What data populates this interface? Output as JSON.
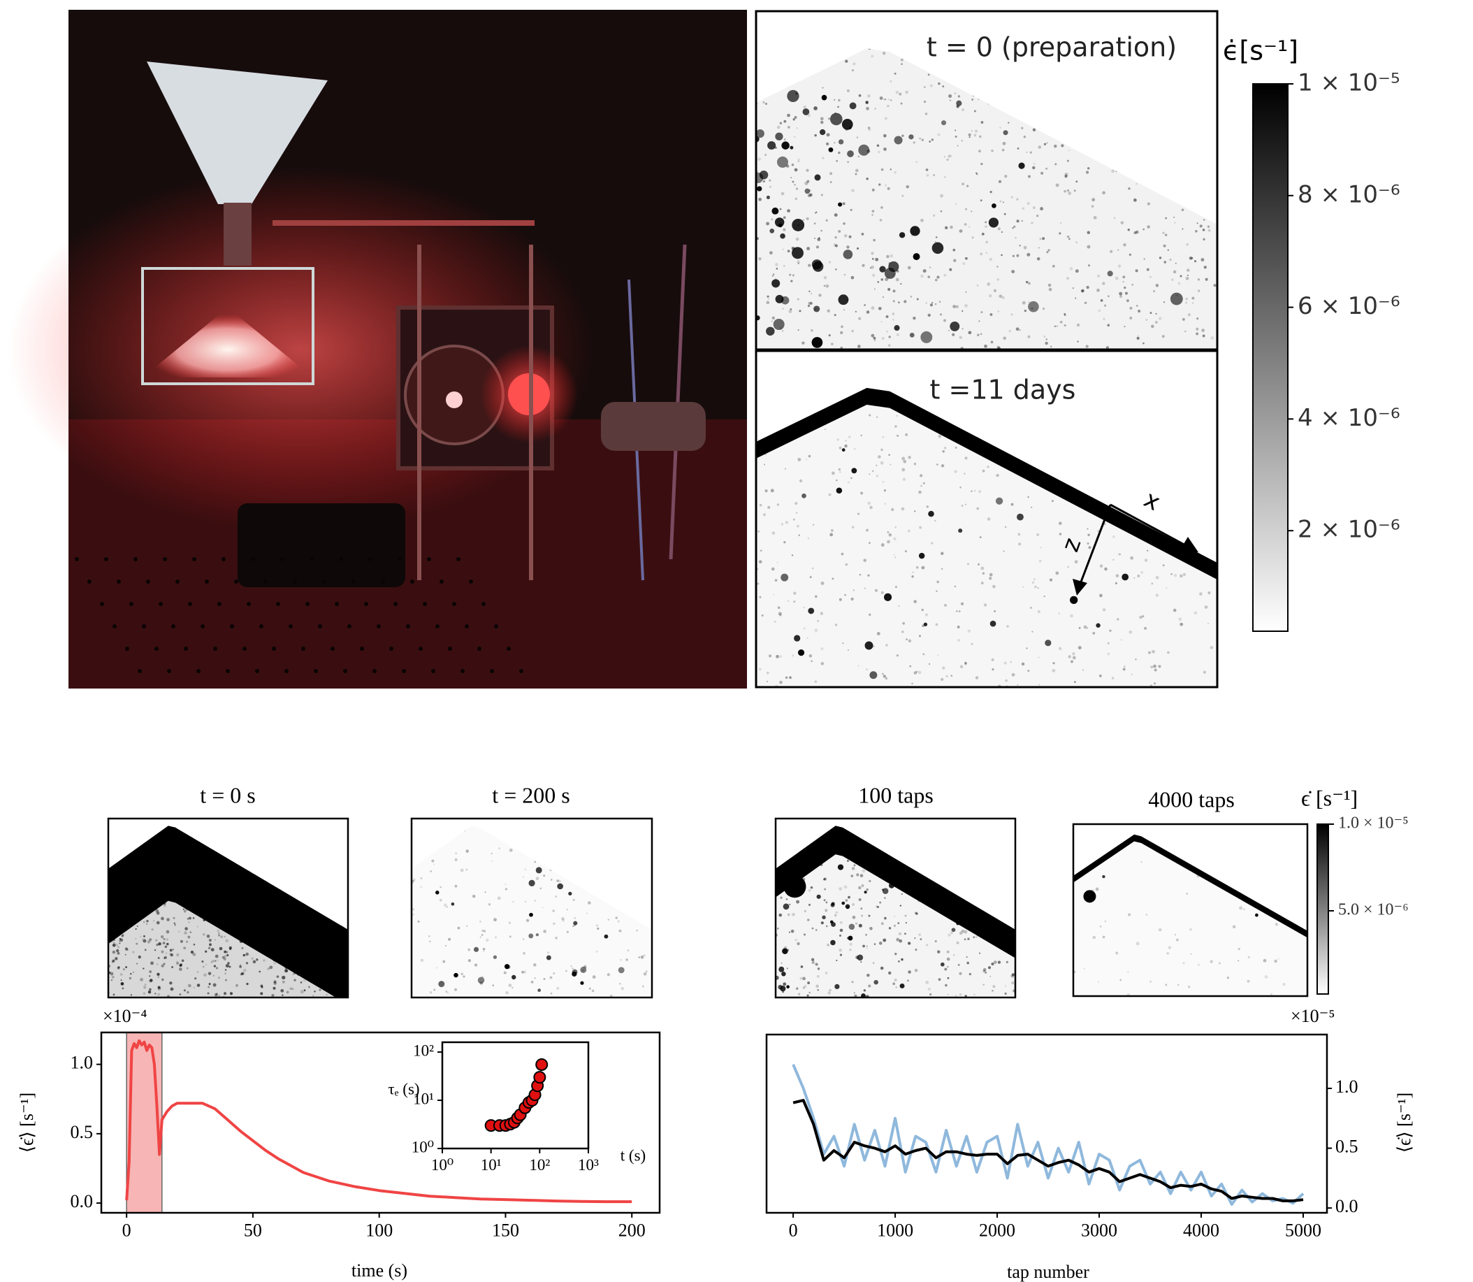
{
  "top_panels": {
    "titles": [
      "t = 0 (preparation)",
      "t =11 days"
    ],
    "axis_x": "x",
    "axis_z": "z"
  },
  "bottom_panels": {
    "titles": [
      "t = 0 s",
      "t = 200 s",
      "100 taps",
      "4000 taps"
    ]
  },
  "chart_data": [
    {
      "type": "colorbar",
      "title": "ϵ̇[s⁻¹]",
      "ylim": [
        2e-07,
        1e-05
      ],
      "yticks": [
        {
          "value": 1e-05,
          "label": "1 × 10⁻⁵"
        },
        {
          "value": 8e-06,
          "label": "8 × 10⁻⁶"
        },
        {
          "value": 6e-06,
          "label": "6 × 10⁻⁶"
        },
        {
          "value": 4e-06,
          "label": "4 × 10⁻⁶"
        },
        {
          "value": 2e-06,
          "label": "2 × 10⁻⁶"
        }
      ],
      "colors": [
        "#ffffff",
        "#000000"
      ]
    },
    {
      "type": "line",
      "xlabel": "time (s)",
      "ylabel": "⟨ϵ̇⟩ [s⁻¹]",
      "y_offset_label": "×10⁻⁴",
      "xlim": [
        -10,
        211
      ],
      "ylim": [
        -0.07,
        1.23
      ],
      "xticks": [
        0,
        50,
        100,
        150,
        200
      ],
      "yticks": [
        {
          "value": 0,
          "label": "0.0"
        },
        {
          "value": 0.5,
          "label": "0.5"
        },
        {
          "value": 1,
          "label": "1.0"
        }
      ],
      "y_axis_side": "left",
      "highlight": [
        0,
        14
      ],
      "highlight_color": "#f7b5b5",
      "x": [
        0,
        1,
        2,
        3,
        4,
        5,
        6,
        7,
        8,
        9,
        10,
        11,
        12,
        13,
        14,
        16,
        18,
        20,
        25,
        30,
        35,
        40,
        45,
        50,
        55,
        60,
        65,
        70,
        75,
        80,
        85,
        90,
        100,
        110,
        120,
        130,
        140,
        150,
        160,
        170,
        180,
        190,
        200
      ],
      "series": [
        {
          "color": "#f04444",
          "values": [
            0.02,
            0.3,
            1.1,
            1.15,
            1.12,
            1.17,
            1.14,
            1.16,
            1.1,
            1.14,
            1.12,
            1.0,
            0.7,
            0.35,
            0.6,
            0.66,
            0.7,
            0.72,
            0.72,
            0.72,
            0.68,
            0.6,
            0.52,
            0.45,
            0.38,
            0.32,
            0.27,
            0.22,
            0.19,
            0.16,
            0.14,
            0.12,
            0.09,
            0.07,
            0.05,
            0.04,
            0.03,
            0.025,
            0.02,
            0.015,
            0.012,
            0.01,
            0.01
          ]
        }
      ]
    },
    {
      "type": "scatter",
      "xlabel": "t (s)",
      "ylabel": "τₑ (s)",
      "xscale": "log",
      "yscale": "log",
      "xlim": [
        1,
        1000
      ],
      "ylim": [
        1,
        160
      ],
      "xticks": [
        {
          "value": 1,
          "label": "10⁰"
        },
        {
          "value": 10,
          "label": "10¹"
        },
        {
          "value": 100,
          "label": "10²"
        },
        {
          "value": 1000,
          "label": "10³"
        }
      ],
      "yticks": [
        {
          "value": 1,
          "label": "10⁰"
        },
        {
          "value": 10,
          "label": "10¹"
        },
        {
          "value": 100,
          "label": "10²"
        }
      ],
      "color": "#e01010",
      "x": [
        10,
        15,
        20,
        25,
        30,
        35,
        40,
        50,
        60,
        70,
        80,
        90,
        100,
        110
      ],
      "values": [
        3,
        3,
        3,
        3.2,
        3.5,
        4.3,
        5,
        7,
        9,
        10,
        13,
        20,
        30,
        55
      ]
    },
    {
      "type": "line",
      "xlabel": "tap number",
      "ylabel": "⟨ϵ̇⟩ [s⁻¹]",
      "y_offset_label": "×10⁻⁵",
      "xlim": [
        -261,
        5233
      ],
      "ylim": [
        -0.04,
        1.45
      ],
      "xticks": [
        0,
        1000,
        2000,
        3000,
        4000,
        5000
      ],
      "yticks": [
        {
          "value": 0,
          "label": "0.0"
        },
        {
          "value": 0.5,
          "label": "0.5"
        },
        {
          "value": 1,
          "label": "1.0"
        }
      ],
      "y_axis_side": "right",
      "x": [
        0,
        100,
        200,
        300,
        400,
        500,
        600,
        700,
        800,
        900,
        1000,
        1100,
        1200,
        1300,
        1400,
        1500,
        1600,
        1700,
        1800,
        1900,
        2000,
        2100,
        2200,
        2300,
        2400,
        2500,
        2600,
        2700,
        2800,
        2900,
        3000,
        3100,
        3200,
        3300,
        3400,
        3500,
        3600,
        3700,
        3800,
        3900,
        4000,
        4100,
        4200,
        4300,
        4400,
        4500,
        4600,
        4700,
        4800,
        4900,
        5000
      ],
      "series": [
        {
          "color": "#8fb8dc",
          "values": [
            1.2,
            1.0,
            0.75,
            0.45,
            0.6,
            0.35,
            0.7,
            0.4,
            0.65,
            0.35,
            0.75,
            0.3,
            0.6,
            0.55,
            0.3,
            0.65,
            0.35,
            0.6,
            0.3,
            0.55,
            0.6,
            0.25,
            0.7,
            0.35,
            0.55,
            0.25,
            0.5,
            0.3,
            0.55,
            0.2,
            0.45,
            0.4,
            0.15,
            0.35,
            0.4,
            0.2,
            0.3,
            0.12,
            0.3,
            0.15,
            0.3,
            0.1,
            0.2,
            0.03,
            0.15,
            0.05,
            0.12,
            0.06,
            0.08,
            0.04,
            0.12
          ]
        },
        {
          "color": "#000000",
          "values": [
            0.88,
            0.9,
            0.7,
            0.4,
            0.48,
            0.42,
            0.55,
            0.52,
            0.5,
            0.47,
            0.52,
            0.45,
            0.48,
            0.5,
            0.42,
            0.47,
            0.47,
            0.45,
            0.44,
            0.45,
            0.45,
            0.37,
            0.44,
            0.45,
            0.4,
            0.35,
            0.38,
            0.4,
            0.36,
            0.3,
            0.33,
            0.3,
            0.22,
            0.25,
            0.28,
            0.25,
            0.22,
            0.17,
            0.19,
            0.18,
            0.2,
            0.16,
            0.14,
            0.08,
            0.1,
            0.09,
            0.08,
            0.08,
            0.06,
            0.06,
            0.07
          ]
        }
      ]
    },
    {
      "type": "colorbar",
      "title": "ϵ̇ [s⁻¹]",
      "ylim": [
        2e-07,
        1e-05
      ],
      "yticks": [
        {
          "value": 1e-05,
          "label": "1.0 × 10⁻⁵"
        },
        {
          "value": 5e-06,
          "label": "5.0 × 10⁻⁶"
        }
      ],
      "colors": [
        "#ffffff",
        "#000000"
      ]
    }
  ]
}
